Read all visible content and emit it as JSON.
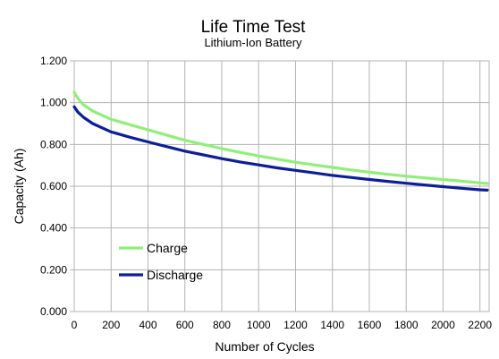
{
  "chart_data": {
    "type": "line",
    "title": "Life Time Test",
    "subtitle": "Lithium-Ion Battery",
    "xlabel": "Number of Cycles",
    "ylabel": "Capacity (Ah)",
    "xlim": [
      0,
      2250
    ],
    "ylim": [
      0,
      1.2
    ],
    "x_ticks": [
      0,
      200,
      400,
      600,
      800,
      1000,
      1200,
      1400,
      1600,
      1800,
      2000,
      2200
    ],
    "x_tick_labels": [
      "0",
      "200",
      "400",
      "600",
      "800",
      "1000",
      "1200",
      "1400",
      "1600",
      "1800",
      "2000",
      "2200"
    ],
    "y_ticks": [
      0,
      0.2,
      0.4,
      0.6,
      0.8,
      1.0,
      1.2
    ],
    "y_tick_labels": [
      "0.000",
      "0.200",
      "0.400",
      "0.600",
      "0.800",
      "1.000",
      "1.200"
    ],
    "grid": true,
    "legend_position": "bottom-left",
    "x": [
      0,
      20,
      50,
      100,
      200,
      300,
      400,
      500,
      600,
      700,
      800,
      900,
      1000,
      1100,
      1200,
      1300,
      1400,
      1500,
      1600,
      1700,
      1800,
      1900,
      2000,
      2100,
      2200,
      2240
    ],
    "series": [
      {
        "name": "Charge",
        "color": "#8fef77",
        "values": [
          1.05,
          1.02,
          0.99,
          0.96,
          0.92,
          0.895,
          0.87,
          0.845,
          0.82,
          0.8,
          0.78,
          0.762,
          0.745,
          0.73,
          0.715,
          0.702,
          0.69,
          0.678,
          0.667,
          0.657,
          0.648,
          0.64,
          0.632,
          0.624,
          0.616,
          0.613
        ]
      },
      {
        "name": "Discharge",
        "color": "#0c1f99",
        "values": [
          0.98,
          0.955,
          0.93,
          0.9,
          0.86,
          0.835,
          0.812,
          0.79,
          0.768,
          0.75,
          0.732,
          0.716,
          0.702,
          0.688,
          0.676,
          0.664,
          0.652,
          0.642,
          0.632,
          0.623,
          0.614,
          0.606,
          0.598,
          0.59,
          0.583,
          0.581
        ]
      }
    ]
  }
}
